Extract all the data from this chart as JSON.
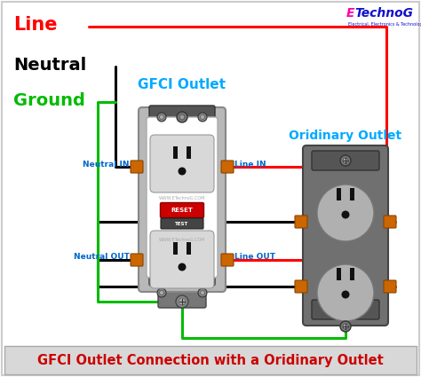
{
  "title": "GFCI Outlet Connection with a Oridinary Outlet",
  "title_color": "#cc0000",
  "title_bg": "#d8d8d8",
  "background_color": "#ffffff",
  "line_label": "Line",
  "line_color": "#ff0000",
  "neutral_label": "Neutral",
  "neutral_color": "#000000",
  "ground_label": "Ground",
  "ground_color": "#00bb00",
  "gfci_label": "GFCI Outlet",
  "ordinary_label": "Oridinary Outlet",
  "label_color": "#00aaff",
  "watermark_E_color": "#ff00aa",
  "watermark_rest_color": "#1111cc",
  "neutral_in_label": "Neutral IN",
  "neutral_out_label": "Neutral OUT",
  "line_in_label": "Line IN",
  "line_out_label": "Line OUT",
  "label_small_color": "#0066cc",
  "wire_lw": 2.2,
  "gfci_body_color": "#b8b8b8",
  "gfci_face_color": "#e8e8e8",
  "gfci_dark_color": "#666666",
  "screw_color": "#cc6600",
  "outlet_slot_color": "#111111"
}
